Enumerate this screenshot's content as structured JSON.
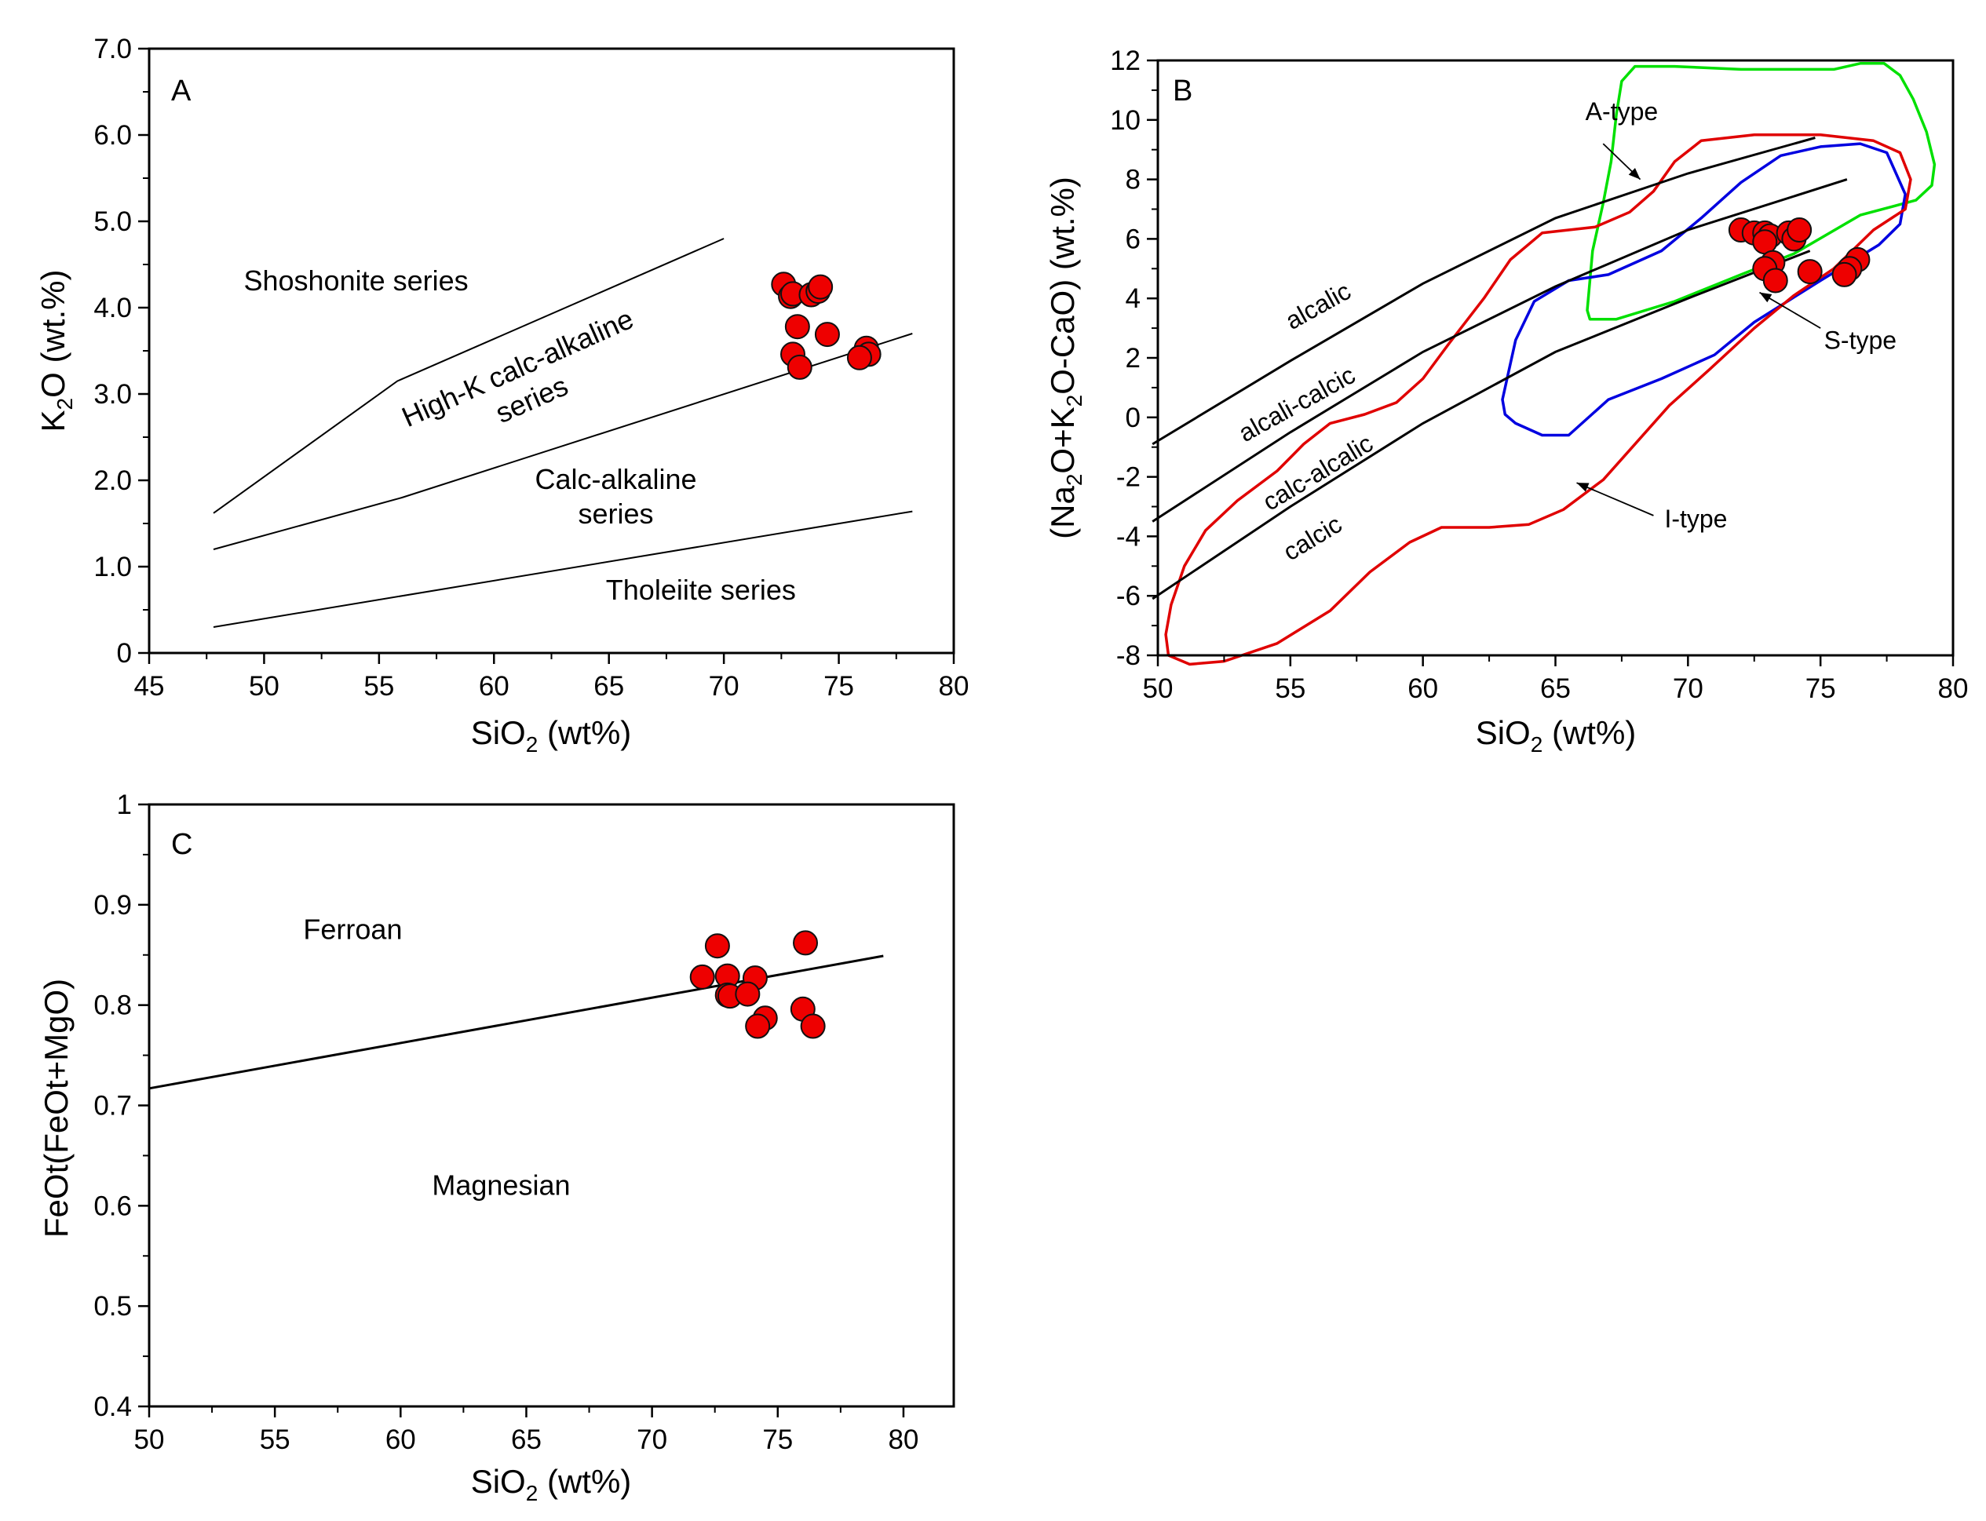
{
  "chart_data": [
    {
      "type": "scatter",
      "panel": "A",
      "xlabel": {
        "main": "SiO",
        "sub": "2",
        "tail": " (wt%)"
      },
      "ylabel": {
        "main": "K",
        "sub": "2",
        "tail": "O (wt.%)"
      },
      "xlim": [
        45,
        80
      ],
      "ylim": [
        0,
        7
      ],
      "xticks": [
        45,
        50,
        55,
        60,
        65,
        70,
        75,
        80
      ],
      "yticks": [
        0,
        1.0,
        2.0,
        3.0,
        4.0,
        5.0,
        6.0,
        7.0
      ],
      "ytick_labels": [
        "0",
        "1.0",
        "2.0",
        "3.0",
        "4.0",
        "5.0",
        "6.0",
        "7.0"
      ],
      "boundaries": [
        {
          "name": "shoshonite-highk-boundary",
          "points": [
            [
              47.8,
              1.62
            ],
            [
              55.8,
              3.15
            ],
            [
              70,
              4.8
            ]
          ]
        },
        {
          "name": "highk-calcalkaline-boundary",
          "points": [
            [
              47.8,
              1.2
            ],
            [
              56,
              1.8
            ],
            [
              78.2,
              3.7
            ]
          ]
        },
        {
          "name": "calcalkaline-tholeiite-boundary",
          "points": [
            [
              47.8,
              0.3
            ],
            [
              78.2,
              1.64
            ]
          ]
        }
      ],
      "region_labels": [
        {
          "text": "Shoshonite series",
          "x": 54,
          "y": 4.2,
          "rotate": 0
        },
        {
          "lines": [
            "High-K calc-alkaline",
            "series"
          ],
          "x": 61.2,
          "y": 3.2,
          "rotate": -24
        },
        {
          "lines": [
            "Calc-alkaline",
            "series"
          ],
          "x": 65.3,
          "y": 1.9,
          "rotate": 0
        },
        {
          "text": "Tholeiite series",
          "x": 69,
          "y": 0.62,
          "rotate": 0
        }
      ],
      "points": [
        {
          "x": 72.6,
          "y": 4.27
        },
        {
          "x": 72.9,
          "y": 4.13
        },
        {
          "x": 73.0,
          "y": 4.16
        },
        {
          "x": 73.8,
          "y": 4.15
        },
        {
          "x": 74.1,
          "y": 4.19
        },
        {
          "x": 74.2,
          "y": 4.24
        },
        {
          "x": 73.2,
          "y": 3.78
        },
        {
          "x": 74.5,
          "y": 3.69
        },
        {
          "x": 73.0,
          "y": 3.46
        },
        {
          "x": 73.3,
          "y": 3.31
        },
        {
          "x": 76.2,
          "y": 3.53
        },
        {
          "x": 76.3,
          "y": 3.46
        },
        {
          "x": 75.9,
          "y": 3.42
        }
      ]
    },
    {
      "type": "scatter",
      "panel": "B",
      "xlabel": {
        "main": "SiO",
        "sub": "2",
        "tail": " (wt%)"
      },
      "ylabel": {
        "pre": "(Na",
        "s1": "2",
        "mid": "O+K",
        "s2": "2",
        "tail": "O-CaO) (wt.%)"
      },
      "xlim": [
        50,
        80
      ],
      "ylim": [
        -8,
        12
      ],
      "xticks": [
        50,
        55,
        60,
        65,
        70,
        75,
        80
      ],
      "yticks": [
        -8,
        -6,
        -4,
        -2,
        0,
        2,
        4,
        6,
        8,
        10,
        12
      ],
      "ytick_labels": [
        "-8",
        "-6",
        "-4",
        "-2",
        "0",
        "2",
        "4",
        "6",
        "8",
        "10",
        "12"
      ],
      "boundaries": [
        {
          "name": "alcalic-boundary",
          "points": [
            [
              49.8,
              -0.9
            ],
            [
              55,
              1.9
            ],
            [
              60,
              4.5
            ],
            [
              65,
              6.7
            ],
            [
              70,
              8.2
            ],
            [
              74.8,
              9.4
            ]
          ]
        },
        {
          "name": "alcali-calcic-boundary",
          "points": [
            [
              49.8,
              -3.5
            ],
            [
              55,
              -0.5
            ],
            [
              60,
              2.2
            ],
            [
              65,
              4.4
            ],
            [
              70,
              6.3
            ],
            [
              76,
              8.0
            ]
          ]
        },
        {
          "name": "calc-alcalic-boundary",
          "points": [
            [
              49.8,
              -6.1
            ],
            [
              55,
              -3.0
            ],
            [
              60,
              -0.2
            ],
            [
              65,
              2.2
            ],
            [
              70,
              4.0
            ],
            [
              74.6,
              5.6
            ]
          ]
        }
      ],
      "boundary_labels": [
        {
          "text": "alcalic",
          "x": 56.2,
          "y": 3.5,
          "rotate": -29
        },
        {
          "text": "alcali-calcic",
          "x": 55.4,
          "y": 0.2,
          "rotate": -29
        },
        {
          "text": "calc-alcalic",
          "x": 56.2,
          "y": -2.1,
          "rotate": -31
        },
        {
          "text": "calcic",
          "x": 56.0,
          "y": -4.3,
          "rotate": -31
        }
      ],
      "fields": [
        {
          "name": "a-type-field",
          "color": "#00e000",
          "points": [
            [
              66.2,
              3.6
            ],
            [
              66.4,
              5.6
            ],
            [
              66.8,
              7.2
            ],
            [
              67.1,
              8.6
            ],
            [
              67.3,
              10.2
            ],
            [
              67.5,
              11.3
            ],
            [
              68.0,
              11.8
            ],
            [
              69.5,
              11.8
            ],
            [
              72.0,
              11.7
            ],
            [
              75.5,
              11.7
            ],
            [
              76.5,
              11.9
            ],
            [
              77.4,
              11.9
            ],
            [
              78.0,
              11.5
            ],
            [
              78.5,
              10.7
            ],
            [
              79.0,
              9.6
            ],
            [
              79.3,
              8.5
            ],
            [
              79.2,
              7.8
            ],
            [
              78.6,
              7.3
            ],
            [
              76.5,
              6.8
            ],
            [
              74.0,
              5.5
            ],
            [
              72.0,
              4.8
            ],
            [
              69.5,
              3.9
            ],
            [
              67.3,
              3.3
            ],
            [
              66.3,
              3.3
            ]
          ]
        },
        {
          "name": "s-type-field",
          "color": "#0000e0",
          "points": [
            [
              63.0,
              0.6
            ],
            [
              63.5,
              2.6
            ],
            [
              64.2,
              3.9
            ],
            [
              65.5,
              4.6
            ],
            [
              67.0,
              4.8
            ],
            [
              69.0,
              5.6
            ],
            [
              70.5,
              6.7
            ],
            [
              72.0,
              7.9
            ],
            [
              73.5,
              8.8
            ],
            [
              75.0,
              9.1
            ],
            [
              76.5,
              9.2
            ],
            [
              77.5,
              8.9
            ],
            [
              78.2,
              7.5
            ],
            [
              78.0,
              6.5
            ],
            [
              77.2,
              5.8
            ],
            [
              75.0,
              4.6
            ],
            [
              72.5,
              3.2
            ],
            [
              71.0,
              2.1
            ],
            [
              69.0,
              1.3
            ],
            [
              67.0,
              0.6
            ],
            [
              65.5,
              -0.6
            ],
            [
              64.5,
              -0.6
            ],
            [
              63.5,
              -0.2
            ],
            [
              63.1,
              0.1
            ]
          ]
        },
        {
          "name": "i-type-field",
          "color": "#e00000",
          "points": [
            [
              50.4,
              -8.0
            ],
            [
              51.2,
              -8.3
            ],
            [
              52.5,
              -8.2
            ],
            [
              54.5,
              -7.6
            ],
            [
              56.5,
              -6.5
            ],
            [
              58.0,
              -5.2
            ],
            [
              59.5,
              -4.2
            ],
            [
              60.7,
              -3.7
            ],
            [
              62.5,
              -3.7
            ],
            [
              64.0,
              -3.6
            ],
            [
              65.3,
              -3.1
            ],
            [
              66.8,
              -2.1
            ],
            [
              68.0,
              -0.9
            ],
            [
              69.3,
              0.4
            ],
            [
              70.8,
              1.6
            ],
            [
              72.5,
              3.0
            ],
            [
              74.0,
              4.1
            ],
            [
              75.5,
              5.0
            ],
            [
              77.0,
              6.3
            ],
            [
              78.2,
              7.0
            ],
            [
              78.4,
              8.0
            ],
            [
              78.0,
              8.9
            ],
            [
              77.0,
              9.3
            ],
            [
              75.0,
              9.5
            ],
            [
              72.5,
              9.5
            ],
            [
              70.5,
              9.3
            ],
            [
              69.5,
              8.6
            ],
            [
              68.7,
              7.6
            ],
            [
              67.8,
              6.9
            ],
            [
              66.5,
              6.4
            ],
            [
              64.5,
              6.2
            ],
            [
              63.3,
              5.3
            ],
            [
              62.3,
              4.0
            ],
            [
              61.0,
              2.5
            ],
            [
              60.0,
              1.3
            ],
            [
              59.0,
              0.5
            ],
            [
              57.8,
              0.1
            ],
            [
              56.5,
              -0.2
            ],
            [
              55.5,
              -0.9
            ],
            [
              54.5,
              -1.8
            ],
            [
              53.0,
              -2.8
            ],
            [
              51.8,
              -3.8
            ],
            [
              51.0,
              -5.0
            ],
            [
              50.5,
              -6.3
            ],
            [
              50.3,
              -7.3
            ]
          ]
        }
      ],
      "field_labels": [
        {
          "text": "A-type",
          "x": 67.5,
          "y": 10.0,
          "arrow_from": [
            66.8,
            9.2
          ],
          "arrow_to": [
            68.2,
            8.0
          ]
        },
        {
          "text": "S-type",
          "x": 76.5,
          "y": 2.3,
          "arrow_from": [
            75.0,
            3.0
          ],
          "arrow_to": [
            72.7,
            4.2
          ]
        },
        {
          "text": "I-type",
          "x": 70.3,
          "y": -3.7,
          "arrow_from": [
            68.7,
            -3.3
          ],
          "arrow_to": [
            65.8,
            -2.2
          ]
        }
      ],
      "points": [
        {
          "x": 72.0,
          "y": 6.3
        },
        {
          "x": 72.5,
          "y": 6.2
        },
        {
          "x": 72.9,
          "y": 6.2
        },
        {
          "x": 73.1,
          "y": 6.1
        },
        {
          "x": 72.9,
          "y": 5.9
        },
        {
          "x": 73.8,
          "y": 6.2
        },
        {
          "x": 74.0,
          "y": 6.0
        },
        {
          "x": 74.2,
          "y": 6.3
        },
        {
          "x": 73.2,
          "y": 5.2
        },
        {
          "x": 72.9,
          "y": 5.0
        },
        {
          "x": 73.3,
          "y": 4.6
        },
        {
          "x": 74.6,
          "y": 4.9
        },
        {
          "x": 76.4,
          "y": 5.3
        },
        {
          "x": 76.1,
          "y": 5.0
        },
        {
          "x": 75.9,
          "y": 4.8
        }
      ]
    },
    {
      "type": "scatter",
      "panel": "C",
      "xlabel": {
        "main": "SiO",
        "sub": "2",
        "tail": " (wt%)"
      },
      "ylabel": {
        "text": "FeOt(FeOt+MgO)"
      },
      "xlim": [
        50,
        82
      ],
      "ylim": [
        0.4,
        1
      ],
      "xticks": [
        50,
        55,
        60,
        65,
        70,
        75,
        80
      ],
      "yticks": [
        0.4,
        0.5,
        0.6,
        0.7,
        0.8,
        0.9,
        1
      ],
      "ytick_labels": [
        "0.4",
        "0.5",
        "0.6",
        "0.7",
        "0.8",
        "0.9",
        "1"
      ],
      "boundaries": [
        {
          "name": "ferroan-magnesian-boundary",
          "points": [
            [
              50,
              0.717
            ],
            [
              79.2,
              0.849
            ]
          ]
        }
      ],
      "region_labels": [
        {
          "text": "Ferroan",
          "x": 58.1,
          "y": 0.866,
          "rotate": 0
        },
        {
          "text": "Magnesian",
          "x": 64.0,
          "y": 0.611,
          "rotate": 0
        }
      ],
      "points": [
        {
          "x": 72.6,
          "y": 0.859
        },
        {
          "x": 76.1,
          "y": 0.862
        },
        {
          "x": 72.0,
          "y": 0.828
        },
        {
          "x": 73.0,
          "y": 0.829
        },
        {
          "x": 74.1,
          "y": 0.827
        },
        {
          "x": 73.0,
          "y": 0.81
        },
        {
          "x": 73.1,
          "y": 0.809
        },
        {
          "x": 73.8,
          "y": 0.811
        },
        {
          "x": 76.0,
          "y": 0.796
        },
        {
          "x": 74.5,
          "y": 0.787
        },
        {
          "x": 74.2,
          "y": 0.779
        },
        {
          "x": 76.4,
          "y": 0.779
        }
      ]
    }
  ],
  "colors": {
    "marker_fill": "#ee0000",
    "marker_stroke": "#111111",
    "line": "#000000"
  }
}
